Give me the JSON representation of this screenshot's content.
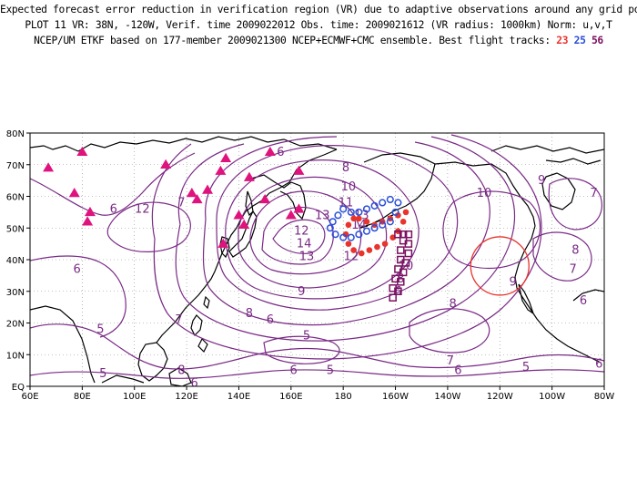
{
  "header": {
    "line1": "Expected forecast error reduction in verification region (VR) due to adaptive observations around any grid point.",
    "line2": "PLOT 11 VR: 38N, -120W, Verif. time 2009022012 Obs. time: 2009021612 (VR radius: 1000km) Norm: u,v,T",
    "line3_prefix": "NCEP/UM ETKF based on 177-member 2009021300 NCEP+ECMWF+CMC ensemble. Best flight tracks:",
    "track_23": "23",
    "track_25": "25",
    "track_56": "56"
  },
  "map": {
    "lon_labels": [
      "60E",
      "80E",
      "100E",
      "120E",
      "140E",
      "160E",
      "180",
      "160W",
      "140W",
      "120W",
      "100W",
      "80W"
    ],
    "lat_labels": [
      "EQ",
      "10N",
      "20N",
      "30N",
      "40N",
      "50N",
      "60N",
      "70N",
      "80N"
    ],
    "extent": {
      "lon_west": 60,
      "lon_east": 280,
      "lat_south": 0,
      "lat_north": 80
    },
    "colors": {
      "contour": "#7a2a86",
      "coast": "#000000",
      "triangle": "#e0137e",
      "track_23": "#e8342c",
      "track_25": "#2a4fd8",
      "track_56": "#7a1060",
      "vr_circle": "#e8342c",
      "grid": "#888888"
    },
    "verification_region": {
      "lat": 38,
      "lon": 240,
      "radius_km": 1000
    },
    "contour_labels": [
      {
        "text": "6",
        "lon": 156,
        "lat": 74
      },
      {
        "text": "8",
        "lon": 181,
        "lat": 69
      },
      {
        "text": "10",
        "lon": 182,
        "lat": 63
      },
      {
        "text": "11",
        "lon": 181,
        "lat": 58
      },
      {
        "text": "13",
        "lon": 172,
        "lat": 54
      },
      {
        "text": "13",
        "lon": 187,
        "lat": 54
      },
      {
        "text": "14",
        "lon": 186,
        "lat": 51
      },
      {
        "text": "14",
        "lon": 165,
        "lat": 45
      },
      {
        "text": "13",
        "lon": 166,
        "lat": 41
      },
      {
        "text": "12",
        "lon": 183,
        "lat": 41
      },
      {
        "text": "10",
        "lon": 204,
        "lat": 38
      },
      {
        "text": "8",
        "lon": 202,
        "lat": 34
      },
      {
        "text": "6",
        "lon": 201,
        "lat": 30
      },
      {
        "text": "9",
        "lon": 164,
        "lat": 30
      },
      {
        "text": "8",
        "lon": 144,
        "lat": 23
      },
      {
        "text": "6",
        "lon": 152,
        "lat": 21
      },
      {
        "text": "5",
        "lon": 166,
        "lat": 16
      },
      {
        "text": "10",
        "lon": 234,
        "lat": 61
      },
      {
        "text": "9",
        "lon": 256,
        "lat": 65
      },
      {
        "text": "7",
        "lon": 276,
        "lat": 61
      },
      {
        "text": "8",
        "lon": 269,
        "lat": 43
      },
      {
        "text": "7",
        "lon": 268,
        "lat": 37
      },
      {
        "text": "9",
        "lon": 245,
        "lat": 33
      },
      {
        "text": "8",
        "lon": 222,
        "lat": 26
      },
      {
        "text": "6",
        "lon": 272,
        "lat": 27
      },
      {
        "text": "7",
        "lon": 221,
        "lat": 8
      },
      {
        "text": "6",
        "lon": 224,
        "lat": 5
      },
      {
        "text": "5",
        "lon": 250,
        "lat": 6
      },
      {
        "text": "6",
        "lon": 278,
        "lat": 7
      },
      {
        "text": "6",
        "lon": 161,
        "lat": 5
      },
      {
        "text": "5",
        "lon": 175,
        "lat": 5
      },
      {
        "text": "6",
        "lon": 78,
        "lat": 37
      },
      {
        "text": "5",
        "lon": 87,
        "lat": 18
      },
      {
        "text": "5",
        "lon": 88,
        "lat": 4
      },
      {
        "text": "7",
        "lon": 117,
        "lat": 21
      },
      {
        "text": "6",
        "lon": 123,
        "lat": 1
      },
      {
        "text": "8",
        "lon": 118,
        "lat": 5
      },
      {
        "text": "7",
        "lon": 118,
        "lat": 58
      },
      {
        "text": "6",
        "lon": 92,
        "lat": 56
      },
      {
        "text": "12",
        "lon": 103,
        "lat": 56
      },
      {
        "text": "12",
        "lon": 164,
        "lat": 49
      }
    ],
    "raob_sites": [
      {
        "lon": 67,
        "lat": 69
      },
      {
        "lon": 80,
        "lat": 74
      },
      {
        "lon": 77,
        "lat": 61
      },
      {
        "lon": 82,
        "lat": 52
      },
      {
        "lon": 83,
        "lat": 55
      },
      {
        "lon": 112,
        "lat": 70
      },
      {
        "lon": 122,
        "lat": 61
      },
      {
        "lon": 124,
        "lat": 59
      },
      {
        "lon": 128,
        "lat": 62
      },
      {
        "lon": 133,
        "lat": 68
      },
      {
        "lon": 135,
        "lat": 72
      },
      {
        "lon": 144,
        "lat": 66
      },
      {
        "lon": 152,
        "lat": 74
      },
      {
        "lon": 150,
        "lat": 59
      },
      {
        "lon": 163,
        "lat": 68
      },
      {
        "lon": 163,
        "lat": 56
      },
      {
        "lon": 160,
        "lat": 54
      },
      {
        "lon": 134,
        "lat": 45
      },
      {
        "lon": 142,
        "lat": 51
      },
      {
        "lon": 140,
        "lat": 54
      }
    ],
    "track_23_points": [
      {
        "lon": 184,
        "lat": 53
      },
      {
        "lon": 182,
        "lat": 51
      },
      {
        "lon": 181,
        "lat": 48
      },
      {
        "lon": 182,
        "lat": 45
      },
      {
        "lon": 184,
        "lat": 43
      },
      {
        "lon": 187,
        "lat": 42
      },
      {
        "lon": 190,
        "lat": 43
      },
      {
        "lon": 193,
        "lat": 44
      },
      {
        "lon": 196,
        "lat": 45
      },
      {
        "lon": 199,
        "lat": 47
      },
      {
        "lon": 201,
        "lat": 49
      },
      {
        "lon": 203,
        "lat": 52
      },
      {
        "lon": 204,
        "lat": 55
      },
      {
        "lon": 201,
        "lat": 54
      },
      {
        "lon": 198,
        "lat": 53
      },
      {
        "lon": 195,
        "lat": 52
      },
      {
        "lon": 192,
        "lat": 51
      },
      {
        "lon": 189,
        "lat": 52
      },
      {
        "lon": 186,
        "lat": 53
      }
    ],
    "track_25_points": [
      {
        "lon": 178,
        "lat": 54
      },
      {
        "lon": 176,
        "lat": 52
      },
      {
        "lon": 175,
        "lat": 50
      },
      {
        "lon": 177,
        "lat": 48
      },
      {
        "lon": 180,
        "lat": 47
      },
      {
        "lon": 183,
        "lat": 47
      },
      {
        "lon": 186,
        "lat": 48
      },
      {
        "lon": 189,
        "lat": 49
      },
      {
        "lon": 192,
        "lat": 50
      },
      {
        "lon": 195,
        "lat": 51
      },
      {
        "lon": 198,
        "lat": 52
      },
      {
        "lon": 200,
        "lat": 55
      },
      {
        "lon": 201,
        "lat": 58
      },
      {
        "lon": 198,
        "lat": 59
      },
      {
        "lon": 195,
        "lat": 58
      },
      {
        "lon": 192,
        "lat": 57
      },
      {
        "lon": 189,
        "lat": 56
      },
      {
        "lon": 186,
        "lat": 55
      },
      {
        "lon": 183,
        "lat": 55
      },
      {
        "lon": 180,
        "lat": 56
      }
    ],
    "track_56_points": [
      {
        "lon": 201,
        "lat": 48
      },
      {
        "lon": 203,
        "lat": 48
      },
      {
        "lon": 205,
        "lat": 48
      },
      {
        "lon": 205,
        "lat": 45
      },
      {
        "lon": 205,
        "lat": 42
      },
      {
        "lon": 204,
        "lat": 39
      },
      {
        "lon": 203,
        "lat": 36
      },
      {
        "lon": 202,
        "lat": 33
      },
      {
        "lon": 201,
        "lat": 30
      },
      {
        "lon": 199,
        "lat": 28
      },
      {
        "lon": 199,
        "lat": 31
      },
      {
        "lon": 200,
        "lat": 34
      },
      {
        "lon": 201,
        "lat": 37
      },
      {
        "lon": 202,
        "lat": 40
      },
      {
        "lon": 202,
        "lat": 43
      },
      {
        "lon": 203,
        "lat": 46
      }
    ]
  }
}
